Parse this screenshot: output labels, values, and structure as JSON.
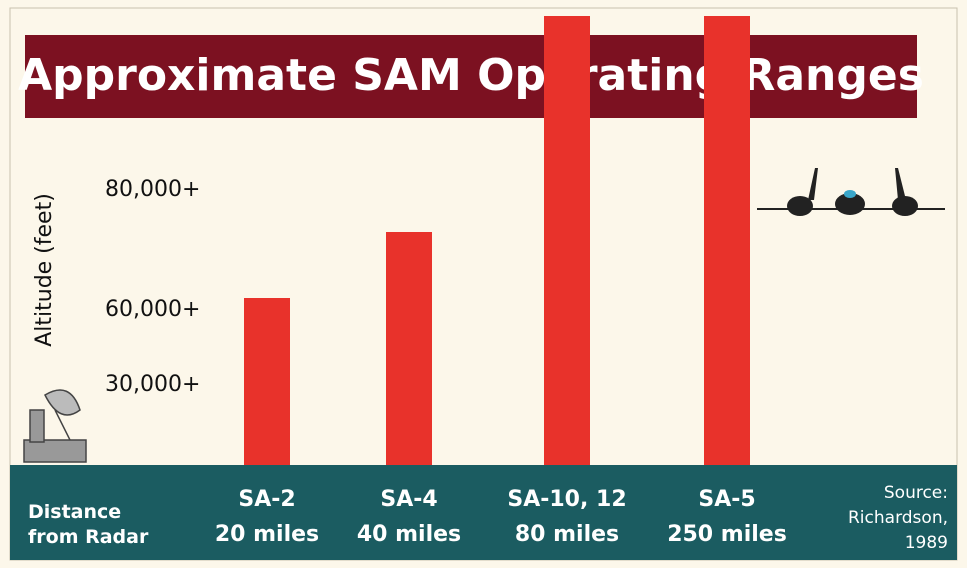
{
  "chart_data": {
    "type": "bar",
    "title": "Approximate SAM Operating Ranges",
    "y_axis_label": "Altitude (feet)",
    "x_axis_label": "Distance from Radar",
    "source": "Source: Richardson, 1989",
    "categories": [
      "SA-2",
      "SA-4",
      "SA-10, 12",
      "SA-5"
    ],
    "category_sublabels": [
      "20 miles",
      "40 miles",
      "80 miles",
      "250 miles"
    ],
    "values": [
      62000,
      73000,
      109000,
      109000
    ],
    "color": "#e8322b",
    "ylim": [
      0,
      110000
    ],
    "yticks": [
      {
        "value": 30000,
        "label": "30,000+"
      },
      {
        "value": 60000,
        "label": "60,000+"
      },
      {
        "value": 80000,
        "label": "80,000+"
      }
    ],
    "grid": false
  }
}
